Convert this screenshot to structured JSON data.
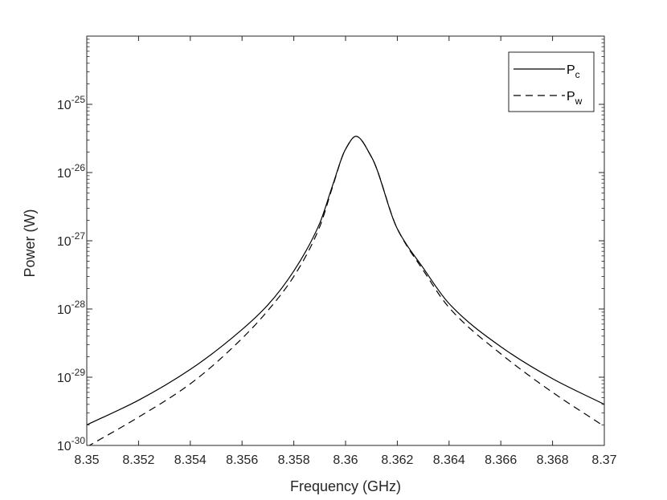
{
  "chart_data": {
    "type": "line",
    "title": "",
    "xlabel": "Frequency (GHz)",
    "ylabel": "Power (W)",
    "xlim": [
      8.35,
      8.37
    ],
    "ylim": [
      1e-30,
      1e-24
    ],
    "yscale": "log",
    "grid": false,
    "legend_position": "top-right",
    "x_ticks": [
      8.35,
      8.352,
      8.354,
      8.356,
      8.358,
      8.36,
      8.362,
      8.364,
      8.366,
      8.368,
      8.37
    ],
    "x_tick_labels": [
      "8.35",
      "8.352",
      "8.354",
      "8.356",
      "8.358",
      "8.36",
      "8.362",
      "8.364",
      "8.366",
      "8.368",
      "8.37"
    ],
    "y_ticks": [
      {
        "value": 1e-30,
        "base": "10",
        "exp": "-30"
      },
      {
        "value": 1e-29,
        "base": "10",
        "exp": "-29"
      },
      {
        "value": 1e-28,
        "base": "10",
        "exp": "-28"
      },
      {
        "value": 1e-27,
        "base": "10",
        "exp": "-27"
      },
      {
        "value": 1e-26,
        "base": "10",
        "exp": "-26"
      },
      {
        "value": 1e-25,
        "base": "10",
        "exp": "-25"
      }
    ],
    "series": [
      {
        "name": "P_c",
        "legend_main": "P",
        "legend_sub": "c",
        "style": "solid",
        "color": "#000000",
        "x": [
          8.35,
          8.352,
          8.354,
          8.356,
          8.357,
          8.358,
          8.359,
          8.3595,
          8.36,
          8.3604,
          8.361,
          8.362,
          8.363,
          8.364,
          8.366,
          8.368,
          8.37
        ],
        "y": [
          2e-30,
          4.6e-30,
          1.3e-29,
          5e-29,
          1.15e-28,
          3.6e-28,
          1.8e-27,
          6.5e-27,
          2.2e-26,
          3.4e-26,
          1.7e-26,
          1.5e-27,
          4e-28,
          1.2e-28,
          2.8e-29,
          9.5e-30,
          4e-30
        ]
      },
      {
        "name": "P_w",
        "legend_main": "P",
        "legend_sub": "w",
        "style": "dashed",
        "color": "#000000",
        "x": [
          8.35,
          8.352,
          8.354,
          8.356,
          8.357,
          8.358,
          8.359,
          8.3595,
          8.36,
          8.3604,
          8.361,
          8.362,
          8.363,
          8.364,
          8.366,
          8.368,
          8.37
        ],
        "y": [
          9.5e-31,
          2.6e-30,
          8e-30,
          3.7e-29,
          9.5e-29,
          3e-28,
          1.6e-27,
          6.2e-27,
          2.2e-26,
          3.4e-26,
          1.7e-26,
          1.5e-27,
          3.7e-28,
          1.05e-28,
          2.2e-29,
          6e-30,
          1.9e-30
        ]
      }
    ]
  }
}
